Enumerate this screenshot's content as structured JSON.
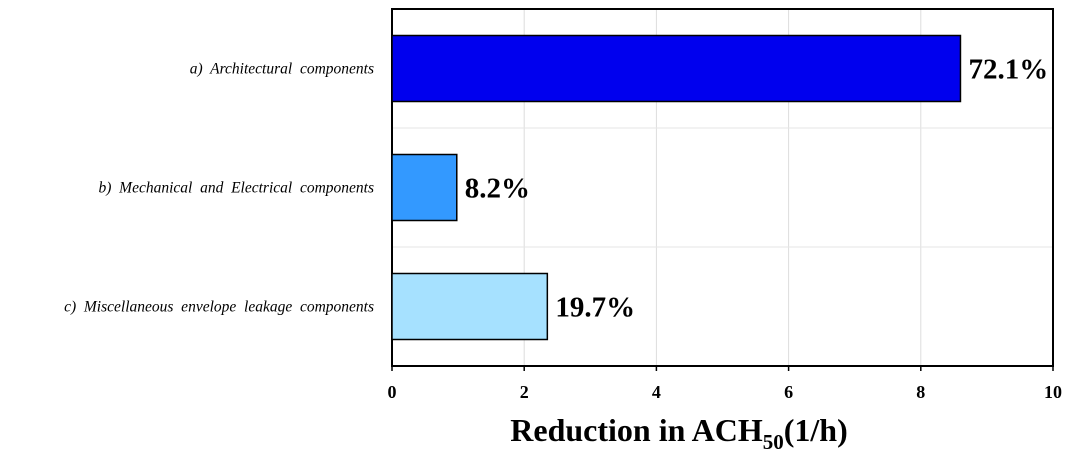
{
  "chart_data": {
    "type": "bar",
    "orientation": "horizontal",
    "categories": [
      "a)  Architectural  components",
      "b)  Mechanical  and  Electrical  components",
      "c)  Miscellaneous  envelope  leakage  components"
    ],
    "values": [
      8.6,
      0.98,
      2.35
    ],
    "data_labels": [
      "72.1%",
      "8.2%",
      "19.7%"
    ],
    "colors": [
      "#0000ee",
      "#3399ff",
      "#a6e1ff"
    ],
    "xlabel": {
      "main": "Reduction in ACH",
      "subscript": "50",
      "suffix": "(1/h)"
    },
    "xlim": [
      0,
      10
    ],
    "xticks": [
      "0",
      "2",
      "4",
      "6",
      "8",
      "10"
    ],
    "grid": true
  }
}
